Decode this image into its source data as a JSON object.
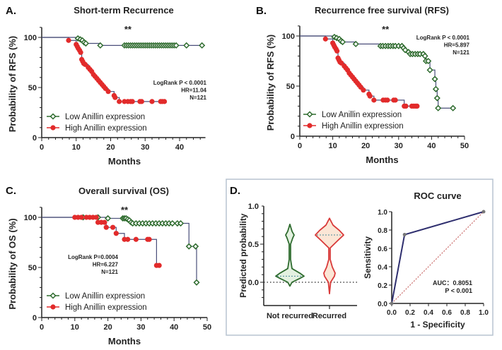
{
  "colors": {
    "low": "#2e6b2e",
    "high": "#e22b2b",
    "line": "#4a4f7a",
    "roc": "#2e2e6e",
    "diag": "#c0504d",
    "panel_border": "#b8c4d0"
  },
  "chart_data": [
    {
      "panel": "A.",
      "type": "line",
      "title": "Short-term Recurrence",
      "xlabel": "Months",
      "ylabel": "Probability of RFS (%)",
      "xticks": [
        0,
        10,
        20,
        30,
        40
      ],
      "yticks": [
        0,
        50,
        100
      ],
      "xlim": [
        0,
        48
      ],
      "ylim": [
        0,
        110
      ],
      "significance": "**",
      "stats": [
        "LogRank P < 0.0001",
        "HR=11.04",
        "N=121"
      ],
      "legend": [
        "Low Anillin expression",
        "High Anillin expression"
      ],
      "legend_position": "bottom-left",
      "series": [
        {
          "name": "Low Anillin expression",
          "marker": "open-diamond",
          "points": [
            [
              10.5,
              99
            ],
            [
              11.2,
              98
            ],
            [
              11.8,
              97
            ],
            [
              12.3,
              95
            ],
            [
              12.8,
              94
            ],
            [
              17,
              92
            ],
            [
              24,
              92
            ],
            [
              24.6,
              92
            ],
            [
              25.2,
              92
            ],
            [
              25.8,
              92
            ],
            [
              26.4,
              92
            ],
            [
              27,
              92
            ],
            [
              27.6,
              92
            ],
            [
              28.2,
              92
            ],
            [
              28.8,
              92
            ],
            [
              29.4,
              92
            ],
            [
              30,
              92
            ],
            [
              30.6,
              92
            ],
            [
              31.2,
              92
            ],
            [
              31.8,
              92
            ],
            [
              32.4,
              92
            ],
            [
              33,
              92
            ],
            [
              33.6,
              92
            ],
            [
              34.2,
              92
            ],
            [
              34.8,
              92
            ],
            [
              35.4,
              92
            ],
            [
              36,
              92
            ],
            [
              36.6,
              92
            ],
            [
              37.2,
              92
            ],
            [
              37.8,
              92
            ],
            [
              38.4,
              92
            ],
            [
              39,
              92
            ],
            [
              42,
              92
            ],
            [
              46.5,
              92
            ]
          ]
        },
        {
          "name": "High Anillin expression",
          "marker": "filled-circle",
          "points": [
            [
              7.8,
              97
            ],
            [
              10,
              93
            ],
            [
              10.3,
              91
            ],
            [
              10.6,
              89
            ],
            [
              11,
              87
            ],
            [
              11.3,
              85
            ],
            [
              11.6,
              78
            ],
            [
              11.9,
              76
            ],
            [
              12.2,
              74
            ],
            [
              12.6,
              73
            ],
            [
              13.5,
              70
            ],
            [
              14,
              68
            ],
            [
              14.5,
              66
            ],
            [
              15,
              63
            ],
            [
              15.5,
              61
            ],
            [
              16,
              59
            ],
            [
              16.5,
              57
            ],
            [
              17,
              55
            ],
            [
              17.5,
              53
            ],
            [
              18,
              51
            ],
            [
              18.5,
              49
            ],
            [
              19.3,
              46
            ],
            [
              21,
              42
            ],
            [
              21.3,
              40
            ],
            [
              22.5,
              36
            ],
            [
              24,
              36
            ],
            [
              25,
              36
            ],
            [
              25.8,
              36
            ],
            [
              26.3,
              36
            ],
            [
              28.5,
              36
            ],
            [
              29,
              36
            ],
            [
              32,
              36
            ],
            [
              34.5,
              36
            ],
            [
              35,
              36
            ],
            [
              35.6,
              36
            ]
          ]
        }
      ]
    },
    {
      "panel": "B.",
      "type": "line",
      "title": "Recurrence free survival (RFS)",
      "xlabel": "Months",
      "ylabel": "Probability of RFS (%)",
      "xticks": [
        0,
        10,
        20,
        30,
        40,
        50
      ],
      "yticks": [
        0,
        50,
        100
      ],
      "xlim": [
        0,
        50
      ],
      "ylim": [
        0,
        110
      ],
      "significance": "**",
      "stats": [
        "LogRank P < 0.0001",
        "HR=5.897",
        "N=121"
      ],
      "legend": [
        "Low Anillin expression",
        "High Anillin expression"
      ],
      "legend_position": "bottom-left",
      "series": [
        {
          "name": "Low Anillin expression",
          "marker": "open-diamond",
          "points": [
            [
              10.5,
              99
            ],
            [
              11.2,
              98
            ],
            [
              12,
              97
            ],
            [
              12.5,
              95
            ],
            [
              13,
              94
            ],
            [
              17,
              92
            ],
            [
              24.5,
              90
            ],
            [
              25.2,
              90
            ],
            [
              26,
              90
            ],
            [
              26.8,
              90
            ],
            [
              27.5,
              90
            ],
            [
              28.3,
              90
            ],
            [
              29,
              90
            ],
            [
              30,
              90
            ],
            [
              31,
              90
            ],
            [
              31.5,
              88
            ],
            [
              32,
              86
            ],
            [
              33,
              84
            ],
            [
              33.5,
              82
            ],
            [
              34.2,
              82
            ],
            [
              35,
              82
            ],
            [
              35.8,
              82
            ],
            [
              36.5,
              82
            ],
            [
              37.5,
              82
            ],
            [
              38,
              80
            ],
            [
              38.3,
              75
            ],
            [
              39,
              75
            ],
            [
              39.5,
              66
            ],
            [
              41,
              57
            ],
            [
              41.3,
              47
            ],
            [
              41.7,
              38
            ],
            [
              42,
              28
            ],
            [
              46.5,
              28
            ]
          ]
        },
        {
          "name": "High Anillin expression",
          "marker": "filled-circle",
          "points": [
            [
              7.8,
              97
            ],
            [
              10,
              93
            ],
            [
              10.3,
              91
            ],
            [
              10.6,
              89
            ],
            [
              11,
              87
            ],
            [
              11.3,
              85
            ],
            [
              11.6,
              78
            ],
            [
              11.9,
              76
            ],
            [
              12.2,
              74
            ],
            [
              12.6,
              73
            ],
            [
              13.5,
              70
            ],
            [
              14,
              68
            ],
            [
              14.5,
              66
            ],
            [
              15,
              63
            ],
            [
              15.5,
              61
            ],
            [
              16,
              59
            ],
            [
              16.5,
              57
            ],
            [
              17,
              55
            ],
            [
              17.5,
              53
            ],
            [
              18,
              51
            ],
            [
              18.5,
              49
            ],
            [
              19.3,
              46
            ],
            [
              21,
              42
            ],
            [
              21.3,
              40
            ],
            [
              22.5,
              36
            ],
            [
              25.3,
              36
            ],
            [
              26,
              36
            ],
            [
              26.6,
              36
            ],
            [
              28.5,
              36
            ],
            [
              29,
              36
            ],
            [
              31.7,
              30
            ],
            [
              32.2,
              30
            ],
            [
              34,
              30
            ],
            [
              34.6,
              30
            ],
            [
              35.2,
              30
            ],
            [
              35.6,
              30
            ]
          ]
        }
      ]
    },
    {
      "panel": "C.",
      "type": "line",
      "title": "Overall survival (OS)",
      "xlabel": "Months",
      "ylabel": "Probability of OS (%)",
      "xticks": [
        0,
        10,
        20,
        30,
        40,
        50
      ],
      "yticks": [
        0,
        50,
        100
      ],
      "xlim": [
        0,
        50
      ],
      "ylim": [
        0,
        110
      ],
      "significance": "**",
      "stats": [
        "LogRank P=0.0004",
        "HR=6.227",
        "N=121"
      ],
      "legend": [
        "Low Anillin expression",
        "High Anillin expression"
      ],
      "legend_position": "bottom-left",
      "series": [
        {
          "name": "Low Anillin expression",
          "marker": "open-diamond",
          "points": [
            [
              12.5,
              100
            ],
            [
              17,
              100
            ],
            [
              20,
              99
            ],
            [
              24.5,
              99
            ],
            [
              25,
              99
            ],
            [
              25.5,
              99
            ],
            [
              26,
              98
            ],
            [
              26.5,
              97
            ],
            [
              27,
              95
            ],
            [
              27.5,
              94
            ],
            [
              28.5,
              94
            ],
            [
              29.5,
              94
            ],
            [
              30.5,
              94
            ],
            [
              31.5,
              94
            ],
            [
              32.5,
              94
            ],
            [
              33.5,
              94
            ],
            [
              34.5,
              94
            ],
            [
              35.5,
              94
            ],
            [
              36.5,
              94
            ],
            [
              37.5,
              94
            ],
            [
              38.5,
              94
            ],
            [
              39.5,
              94
            ],
            [
              41,
              94
            ],
            [
              42,
              94
            ],
            [
              44.5,
              71
            ],
            [
              46.5,
              71
            ],
            [
              46.8,
              35
            ]
          ]
        },
        {
          "name": "High Anillin expression",
          "marker": "filled-circle",
          "points": [
            [
              10,
              100
            ],
            [
              11,
              100
            ],
            [
              12,
              100
            ],
            [
              13.5,
              100
            ],
            [
              14.5,
              100
            ],
            [
              15.5,
              100
            ],
            [
              16.5,
              100
            ],
            [
              17,
              95
            ],
            [
              18,
              95
            ],
            [
              19,
              95
            ],
            [
              19.5,
              90
            ],
            [
              21.5,
              90
            ],
            [
              22.5,
              84
            ],
            [
              25,
              78
            ],
            [
              26,
              78
            ],
            [
              28.5,
              78
            ],
            [
              32,
              78
            ],
            [
              32.5,
              78
            ],
            [
              34.7,
              52
            ],
            [
              35.5,
              52
            ]
          ]
        }
      ]
    },
    {
      "panel": "D.",
      "type": "violin",
      "ylabel": "Predicted probability",
      "categories": [
        "Not recurred",
        "Recurred"
      ],
      "yticks": [
        0.0,
        0.5,
        1.0
      ],
      "ylim": [
        -0.2,
        1.0
      ],
      "reference_line": 0.0,
      "violins": [
        {
          "category": "Not recurred",
          "min": -0.05,
          "max": 0.76,
          "median": 0.08,
          "profile": [
            [
              -0.05,
              0
            ],
            [
              0.0,
              0.15
            ],
            [
              0.05,
              0.7
            ],
            [
              0.08,
              1.0
            ],
            [
              0.12,
              0.7
            ],
            [
              0.18,
              0.15
            ],
            [
              0.3,
              0.05
            ],
            [
              0.5,
              0.05
            ],
            [
              0.58,
              0.2
            ],
            [
              0.62,
              0.3
            ],
            [
              0.67,
              0.15
            ],
            [
              0.76,
              0
            ]
          ]
        },
        {
          "category": "Recurred",
          "min": -0.15,
          "max": 0.84,
          "median": 0.62,
          "profile": [
            [
              -0.15,
              0
            ],
            [
              0.0,
              0.08
            ],
            [
              0.08,
              0.35
            ],
            [
              0.12,
              0.4
            ],
            [
              0.2,
              0.2
            ],
            [
              0.3,
              0.05
            ],
            [
              0.45,
              0.05
            ],
            [
              0.55,
              0.6
            ],
            [
              0.62,
              1.0
            ],
            [
              0.68,
              0.7
            ],
            [
              0.75,
              0.25
            ],
            [
              0.84,
              0
            ]
          ]
        }
      ]
    },
    {
      "panel": "",
      "type": "line",
      "title": "ROC curve",
      "xlabel": "1 - Specificity",
      "ylabel": "Sensitivity",
      "xticks": [
        "0.0",
        "0.2",
        "0.4",
        "0.6",
        "0.8",
        "1.0"
      ],
      "yticks": [
        "0.0",
        "0.2",
        "0.4",
        "0.6",
        "0.8",
        "1.0"
      ],
      "xlim": [
        0,
        1
      ],
      "ylim": [
        0,
        1
      ],
      "points": [
        [
          0,
          0
        ],
        [
          0.14,
          0.75
        ],
        [
          1,
          1
        ]
      ],
      "diagonal": true,
      "stats": [
        "AUC：0.8051",
        "P < 0.001"
      ]
    }
  ]
}
